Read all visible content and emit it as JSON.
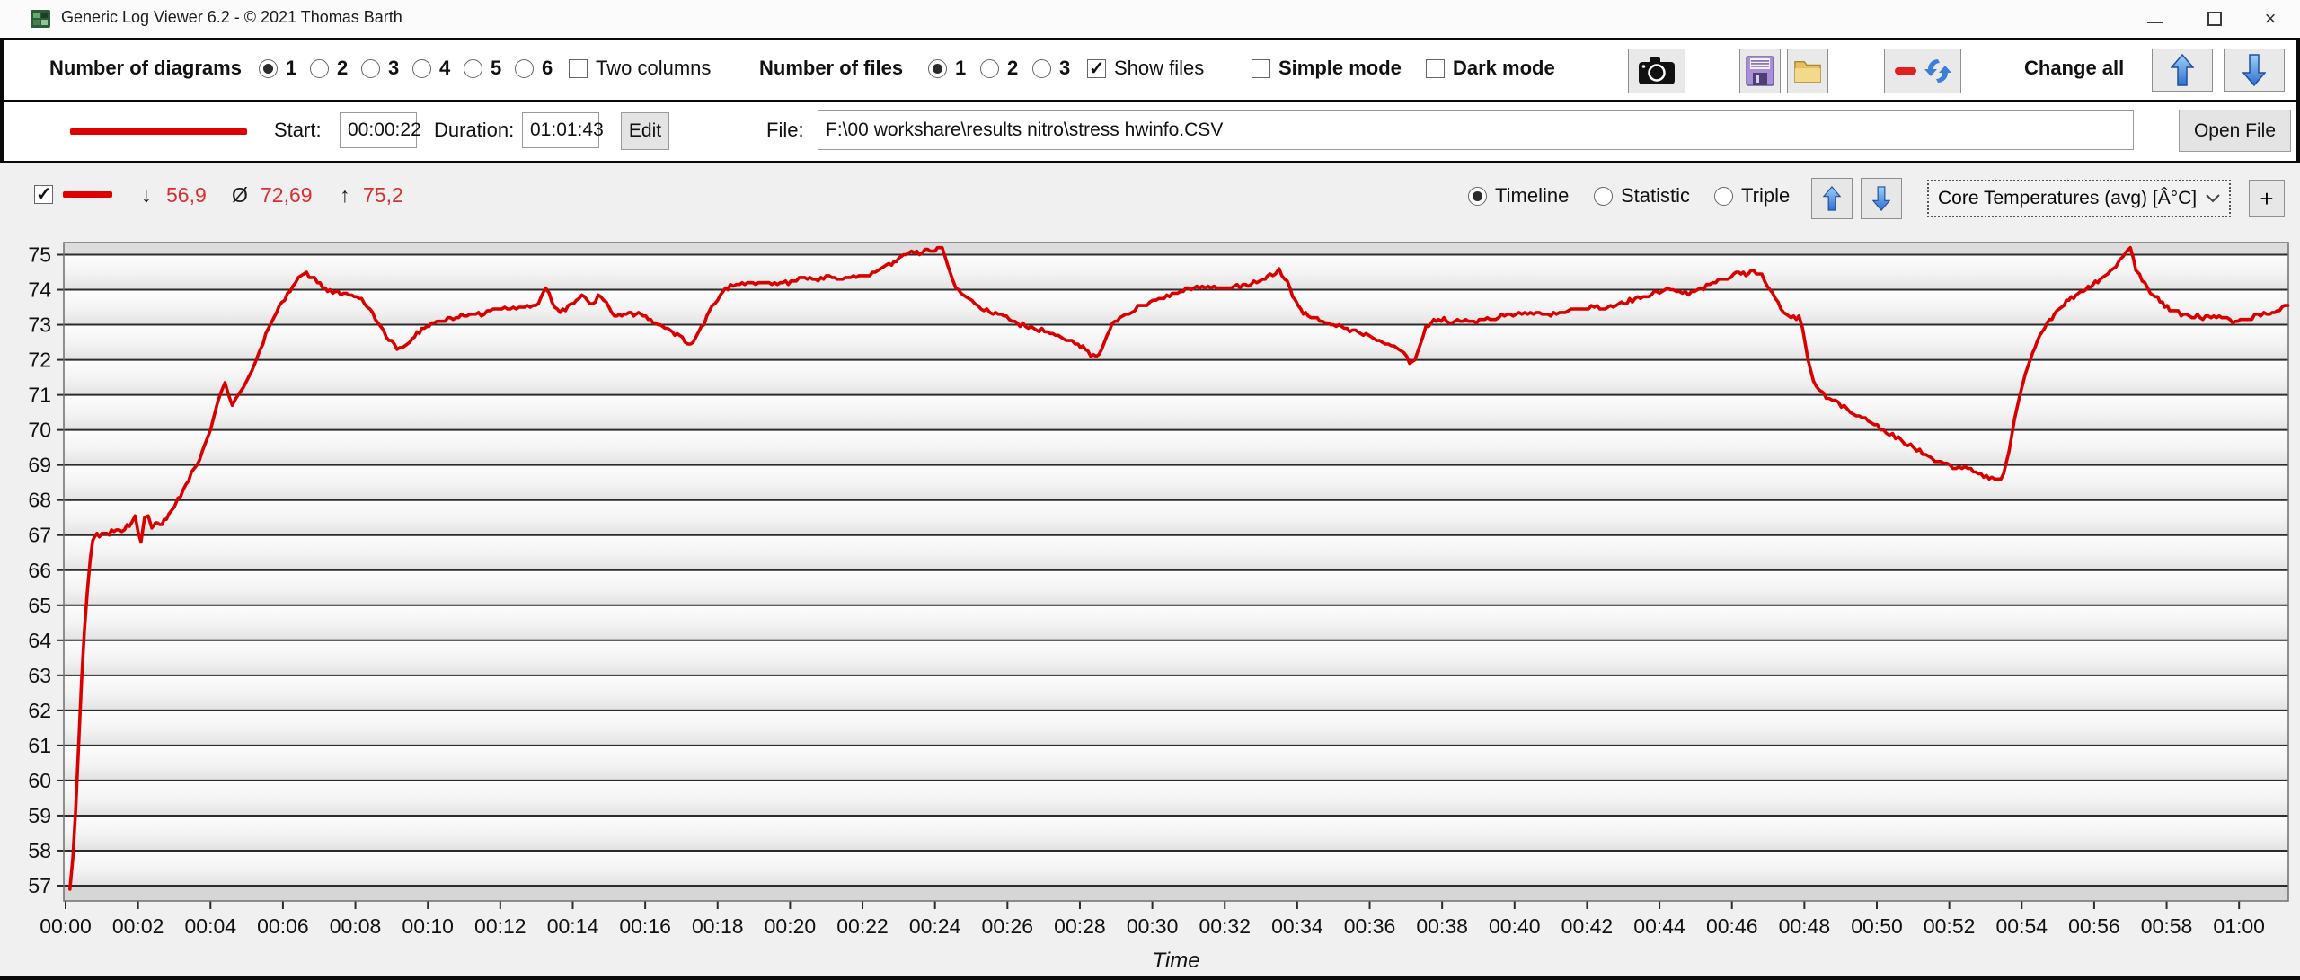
{
  "window": {
    "title": "Generic Log Viewer 6.2 - © 2021 Thomas Barth",
    "minimize": "−",
    "maximize": "",
    "close": "×"
  },
  "toolbar": {
    "diagrams_label": "Number of diagrams",
    "diagram_options": [
      "1",
      "2",
      "3",
      "4",
      "5",
      "6"
    ],
    "diagram_selected": "1",
    "two_columns_label": "Two columns",
    "files_label": "Number of files",
    "file_options": [
      "1",
      "2",
      "3"
    ],
    "file_selected": "1",
    "show_files_label": "Show files",
    "simple_mode_label": "Simple mode",
    "dark_mode_label": "Dark mode",
    "change_all_label": "Change all",
    "icons": [
      "camera-icon",
      "save-icon",
      "folder-icon",
      "reset-refresh-icon",
      "arrow-up-icon",
      "arrow-down-icon"
    ]
  },
  "file_row": {
    "start_label": "Start:",
    "start_value": "00:00:22",
    "duration_label": "Duration:",
    "duration_value": "01:01:43",
    "edit_label": "Edit",
    "file_label": "File:",
    "file_path": "F:\\00 workshare\\results nitro\\stress hwinfo.CSV",
    "open_file_label": "Open File"
  },
  "chart_header": {
    "enabled": true,
    "min_symbol": "↓",
    "min": "56,9",
    "avg_symbol": "Ø",
    "avg": "72,69",
    "max_symbol": "↑",
    "max": "75,2",
    "views": [
      "Timeline",
      "Statistic",
      "Triple"
    ],
    "view_selected": "Timeline",
    "signal_selector": "Core Temperatures (avg) [Â°C]",
    "add_label": "+",
    "line_color": "#e00000"
  },
  "chart_data": {
    "type": "line",
    "title": "Core Temperatures (avg)",
    "xlabel": "Time",
    "ylabel": "",
    "ylim": [
      57,
      75.6
    ],
    "yticks": [
      57,
      58,
      59,
      60,
      61,
      62,
      63,
      64,
      65,
      66,
      67,
      68,
      69,
      70,
      71,
      72,
      73,
      74,
      75
    ],
    "xtick_labels": [
      "00:00",
      "00:02",
      "00:04",
      "00:06",
      "00:08",
      "00:10",
      "00:12",
      "00:14",
      "00:16",
      "00:18",
      "00:20",
      "00:22",
      "00:24",
      "00:26",
      "00:28",
      "00:30",
      "00:32",
      "00:34",
      "00:36",
      "00:38",
      "00:40",
      "00:42",
      "00:44",
      "00:46",
      "00:48",
      "00:50",
      "00:52",
      "00:54",
      "00:56",
      "00:58",
      "01:00"
    ],
    "xtick_minutes": [
      0,
      2,
      4,
      6,
      8,
      10,
      12,
      14,
      16,
      18,
      20,
      22,
      24,
      26,
      28,
      30,
      32,
      34,
      36,
      38,
      40,
      42,
      44,
      46,
      48,
      50,
      52,
      54,
      56,
      58,
      60
    ],
    "line_color": "#db0000",
    "grid": true,
    "stats": {
      "min": 56.9,
      "avg": 72.69,
      "max": 75.2
    },
    "series_minutes_celsius": [
      [
        0.12,
        56.9
      ],
      [
        0.2,
        57.8
      ],
      [
        0.28,
        59.2
      ],
      [
        0.36,
        61.0
      ],
      [
        0.44,
        62.8
      ],
      [
        0.52,
        64.3
      ],
      [
        0.6,
        65.4
      ],
      [
        0.68,
        66.3
      ],
      [
        0.75,
        66.85
      ],
      [
        0.8,
        67.0
      ],
      [
        1.0,
        67.0
      ],
      [
        1.2,
        67.05
      ],
      [
        1.4,
        67.15
      ],
      [
        1.55,
        67.1
      ],
      [
        1.7,
        67.25
      ],
      [
        1.82,
        67.3
      ],
      [
        1.92,
        67.55
      ],
      [
        2.0,
        67.1
      ],
      [
        2.08,
        66.8
      ],
      [
        2.18,
        67.5
      ],
      [
        2.28,
        67.55
      ],
      [
        2.38,
        67.2
      ],
      [
        2.48,
        67.35
      ],
      [
        2.6,
        67.25
      ],
      [
        2.72,
        67.4
      ],
      [
        2.85,
        67.6
      ],
      [
        3.0,
        67.85
      ],
      [
        3.1,
        68.0
      ],
      [
        3.25,
        68.3
      ],
      [
        3.4,
        68.6
      ],
      [
        3.55,
        68.9
      ],
      [
        3.7,
        69.2
      ],
      [
        3.85,
        69.6
      ],
      [
        4.0,
        70.0
      ],
      [
        4.1,
        70.4
      ],
      [
        4.2,
        70.8
      ],
      [
        4.3,
        71.1
      ],
      [
        4.4,
        71.3
      ],
      [
        4.5,
        71.0
      ],
      [
        4.6,
        70.75
      ],
      [
        4.7,
        70.9
      ],
      [
        4.8,
        71.05
      ],
      [
        4.9,
        71.2
      ],
      [
        5.0,
        71.35
      ],
      [
        5.15,
        71.7
      ],
      [
        5.3,
        72.1
      ],
      [
        5.45,
        72.5
      ],
      [
        5.6,
        72.9
      ],
      [
        5.75,
        73.2
      ],
      [
        5.9,
        73.5
      ],
      [
        6.05,
        73.75
      ],
      [
        6.2,
        74.0
      ],
      [
        6.35,
        74.2
      ],
      [
        6.5,
        74.35
      ],
      [
        6.65,
        74.45
      ],
      [
        6.8,
        74.35
      ],
      [
        6.95,
        74.25
      ],
      [
        7.1,
        74.05
      ],
      [
        7.3,
        73.95
      ],
      [
        7.6,
        73.9
      ],
      [
        7.9,
        73.85
      ],
      [
        8.1,
        73.8
      ],
      [
        8.25,
        73.6
      ],
      [
        8.4,
        73.4
      ],
      [
        8.55,
        73.2
      ],
      [
        8.7,
        72.95
      ],
      [
        8.85,
        72.7
      ],
      [
        9.0,
        72.5
      ],
      [
        9.15,
        72.35
      ],
      [
        9.3,
        72.4
      ],
      [
        9.5,
        72.55
      ],
      [
        9.7,
        72.75
      ],
      [
        9.9,
        72.9
      ],
      [
        10.1,
        73.0
      ],
      [
        10.4,
        73.1
      ],
      [
        10.7,
        73.2
      ],
      [
        11.0,
        73.25
      ],
      [
        11.4,
        73.3
      ],
      [
        11.8,
        73.4
      ],
      [
        12.2,
        73.45
      ],
      [
        12.6,
        73.5
      ],
      [
        12.9,
        73.55
      ],
      [
        13.05,
        73.6
      ],
      [
        13.15,
        73.85
      ],
      [
        13.25,
        74.05
      ],
      [
        13.35,
        73.9
      ],
      [
        13.5,
        73.5
      ],
      [
        13.65,
        73.35
      ],
      [
        13.8,
        73.45
      ],
      [
        13.95,
        73.6
      ],
      [
        14.1,
        73.75
      ],
      [
        14.25,
        73.85
      ],
      [
        14.4,
        73.7
      ],
      [
        14.55,
        73.6
      ],
      [
        14.7,
        73.8
      ],
      [
        14.85,
        73.7
      ],
      [
        15.0,
        73.5
      ],
      [
        15.15,
        73.3
      ],
      [
        15.35,
        73.25
      ],
      [
        15.55,
        73.35
      ],
      [
        15.75,
        73.3
      ],
      [
        15.95,
        73.25
      ],
      [
        16.15,
        73.15
      ],
      [
        16.35,
        73.0
      ],
      [
        16.55,
        72.9
      ],
      [
        16.75,
        72.8
      ],
      [
        16.95,
        72.65
      ],
      [
        17.1,
        72.55
      ],
      [
        17.25,
        72.45
      ],
      [
        17.4,
        72.6
      ],
      [
        17.55,
        72.9
      ],
      [
        17.7,
        73.2
      ],
      [
        17.85,
        73.5
      ],
      [
        18.0,
        73.75
      ],
      [
        18.15,
        73.95
      ],
      [
        18.35,
        74.1
      ],
      [
        18.6,
        74.15
      ],
      [
        18.9,
        74.2
      ],
      [
        19.2,
        74.15
      ],
      [
        19.5,
        74.2
      ],
      [
        19.8,
        74.2
      ],
      [
        20.1,
        74.25
      ],
      [
        20.4,
        74.3
      ],
      [
        20.7,
        74.3
      ],
      [
        21.0,
        74.35
      ],
      [
        21.3,
        74.3
      ],
      [
        21.6,
        74.35
      ],
      [
        21.9,
        74.4
      ],
      [
        22.2,
        74.45
      ],
      [
        22.5,
        74.6
      ],
      [
        22.8,
        74.75
      ],
      [
        23.0,
        74.9
      ],
      [
        23.2,
        75.0
      ],
      [
        23.5,
        75.05
      ],
      [
        23.8,
        75.1
      ],
      [
        24.0,
        75.15
      ],
      [
        24.2,
        75.2
      ],
      [
        24.35,
        74.7
      ],
      [
        24.5,
        74.25
      ],
      [
        24.65,
        74.0
      ],
      [
        24.85,
        73.8
      ],
      [
        25.1,
        73.6
      ],
      [
        25.35,
        73.45
      ],
      [
        25.6,
        73.35
      ],
      [
        25.9,
        73.25
      ],
      [
        26.2,
        73.1
      ],
      [
        26.5,
        72.95
      ],
      [
        26.8,
        72.85
      ],
      [
        27.1,
        72.8
      ],
      [
        27.4,
        72.7
      ],
      [
        27.7,
        72.55
      ],
      [
        27.95,
        72.45
      ],
      [
        28.15,
        72.3
      ],
      [
        28.3,
        72.15
      ],
      [
        28.45,
        72.05
      ],
      [
        28.6,
        72.3
      ],
      [
        28.75,
        72.7
      ],
      [
        28.9,
        73.0
      ],
      [
        29.1,
        73.2
      ],
      [
        29.35,
        73.35
      ],
      [
        29.6,
        73.5
      ],
      [
        29.85,
        73.6
      ],
      [
        30.1,
        73.7
      ],
      [
        30.4,
        73.8
      ],
      [
        30.7,
        73.9
      ],
      [
        31.0,
        74.0
      ],
      [
        31.3,
        74.05
      ],
      [
        31.7,
        74.1
      ],
      [
        32.1,
        74.05
      ],
      [
        32.5,
        74.1
      ],
      [
        32.8,
        74.2
      ],
      [
        33.05,
        74.3
      ],
      [
        33.25,
        74.4
      ],
      [
        33.4,
        74.5
      ],
      [
        33.5,
        74.55
      ],
      [
        33.65,
        74.35
      ],
      [
        33.8,
        74.05
      ],
      [
        33.95,
        73.7
      ],
      [
        34.1,
        73.4
      ],
      [
        34.3,
        73.25
      ],
      [
        34.55,
        73.15
      ],
      [
        34.85,
        73.05
      ],
      [
        35.15,
        72.95
      ],
      [
        35.45,
        72.85
      ],
      [
        35.75,
        72.75
      ],
      [
        36.05,
        72.65
      ],
      [
        36.35,
        72.5
      ],
      [
        36.6,
        72.4
      ],
      [
        36.8,
        72.3
      ],
      [
        36.95,
        72.15
      ],
      [
        37.1,
        71.95
      ],
      [
        37.25,
        72.0
      ],
      [
        37.4,
        72.45
      ],
      [
        37.55,
        72.9
      ],
      [
        37.7,
        73.1
      ],
      [
        37.9,
        73.15
      ],
      [
        38.2,
        73.1
      ],
      [
        38.5,
        73.15
      ],
      [
        38.8,
        73.1
      ],
      [
        39.1,
        73.15
      ],
      [
        39.4,
        73.2
      ],
      [
        39.8,
        73.25
      ],
      [
        40.2,
        73.3
      ],
      [
        40.6,
        73.35
      ],
      [
        41.0,
        73.3
      ],
      [
        41.4,
        73.4
      ],
      [
        41.8,
        73.45
      ],
      [
        42.2,
        73.5
      ],
      [
        42.5,
        73.45
      ],
      [
        42.8,
        73.55
      ],
      [
        43.1,
        73.65
      ],
      [
        43.4,
        73.75
      ],
      [
        43.7,
        73.85
      ],
      [
        44.0,
        73.95
      ],
      [
        44.3,
        74.05
      ],
      [
        44.55,
        73.95
      ],
      [
        44.8,
        73.9
      ],
      [
        45.05,
        74.0
      ],
      [
        45.3,
        74.1
      ],
      [
        45.55,
        74.2
      ],
      [
        45.8,
        74.3
      ],
      [
        46.05,
        74.4
      ],
      [
        46.25,
        74.5
      ],
      [
        46.45,
        74.45
      ],
      [
        46.6,
        74.55
      ],
      [
        46.75,
        74.45
      ],
      [
        46.9,
        74.3
      ],
      [
        47.05,
        74.0
      ],
      [
        47.2,
        73.7
      ],
      [
        47.35,
        73.45
      ],
      [
        47.5,
        73.3
      ],
      [
        47.7,
        73.25
      ],
      [
        47.85,
        73.2
      ],
      [
        47.95,
        72.9
      ],
      [
        48.1,
        72.0
      ],
      [
        48.25,
        71.4
      ],
      [
        48.4,
        71.15
      ],
      [
        48.6,
        70.95
      ],
      [
        48.85,
        70.8
      ],
      [
        49.1,
        70.65
      ],
      [
        49.35,
        70.5
      ],
      [
        49.6,
        70.35
      ],
      [
        49.85,
        70.2
      ],
      [
        50.1,
        70.05
      ],
      [
        50.35,
        69.9
      ],
      [
        50.6,
        69.75
      ],
      [
        50.85,
        69.6
      ],
      [
        51.1,
        69.45
      ],
      [
        51.35,
        69.3
      ],
      [
        51.6,
        69.15
      ],
      [
        51.85,
        69.05
      ],
      [
        52.1,
        68.95
      ],
      [
        52.35,
        68.9
      ],
      [
        52.6,
        68.85
      ],
      [
        52.8,
        68.8
      ],
      [
        52.95,
        68.7
      ],
      [
        53.1,
        68.6
      ],
      [
        53.25,
        68.65
      ],
      [
        53.35,
        68.55
      ],
      [
        53.5,
        68.75
      ],
      [
        53.65,
        69.4
      ],
      [
        53.8,
        70.3
      ],
      [
        53.95,
        71.0
      ],
      [
        54.1,
        71.6
      ],
      [
        54.3,
        72.2
      ],
      [
        54.5,
        72.7
      ],
      [
        54.7,
        73.05
      ],
      [
        54.9,
        73.3
      ],
      [
        55.1,
        73.55
      ],
      [
        55.3,
        73.7
      ],
      [
        55.5,
        73.85
      ],
      [
        55.7,
        74.0
      ],
      [
        55.9,
        74.1
      ],
      [
        56.1,
        74.25
      ],
      [
        56.3,
        74.45
      ],
      [
        56.45,
        74.55
      ],
      [
        56.6,
        74.7
      ],
      [
        56.7,
        74.85
      ],
      [
        56.8,
        75.0
      ],
      [
        56.9,
        75.1
      ],
      [
        57.0,
        75.2
      ],
      [
        57.08,
        74.9
      ],
      [
        57.15,
        74.6
      ],
      [
        57.25,
        74.4
      ],
      [
        57.4,
        74.15
      ],
      [
        57.55,
        73.95
      ],
      [
        57.75,
        73.75
      ],
      [
        57.95,
        73.55
      ],
      [
        58.15,
        73.4
      ],
      [
        58.4,
        73.3
      ],
      [
        58.7,
        73.25
      ],
      [
        59.0,
        73.2
      ],
      [
        59.3,
        73.25
      ],
      [
        59.6,
        73.2
      ],
      [
        59.9,
        73.1
      ],
      [
        60.1,
        73.15
      ],
      [
        60.35,
        73.2
      ],
      [
        60.6,
        73.3
      ],
      [
        60.85,
        73.35
      ],
      [
        61.05,
        73.4
      ],
      [
        61.25,
        73.5
      ],
      [
        61.35,
        73.55
      ]
    ]
  }
}
